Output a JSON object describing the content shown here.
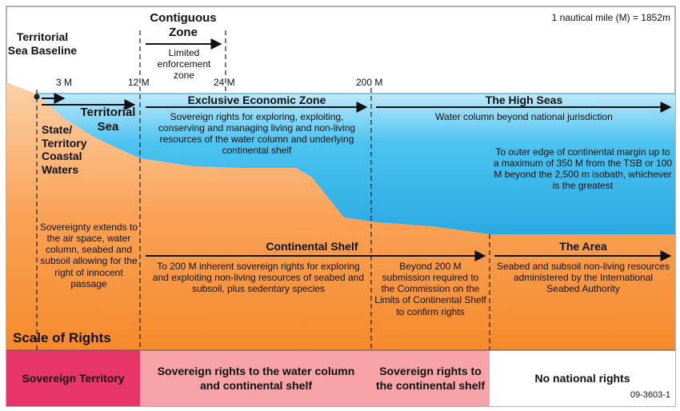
{
  "title_note": "1 nautical mile (M) = 1852m",
  "figure_id": "09-3603-1",
  "baseline_label": "Territorial Sea Baseline",
  "contiguous_zone": {
    "title": "Contiguous Zone",
    "subtitle": "Limited enforcement zone"
  },
  "distance_markers": [
    "3 M",
    "12 M",
    "24 M",
    "200 M"
  ],
  "zones": {
    "territorial_sea": "Territorial Sea",
    "state_waters": "State/ Territory Coastal Waters",
    "eez": {
      "title": "Exclusive Economic Zone",
      "description": "Sovereign rights for exploring, exploiting, conserving and managing living and non-living resources of the water column and underlying continental shelf"
    },
    "high_seas": {
      "title": "The High Seas",
      "description": "Water column beyond national jurisdiction"
    },
    "margin_note": "To outer edge of continental margin up to a maximum of 350 M from the TSB or 100 M beyond the 2,500 m isobath, whichever is the greatest",
    "sovereignty_note": "Sovereignty extends to the air space, water column, seabed and subsoil allowing for the right of innocent passage",
    "continental_shelf": {
      "title": "Continental Shelf",
      "description": "To 200 M inherent sovereign rights for exploring and exploiting non-living resources of seabed and subsoil, plus sedentary species",
      "beyond": "Beyond 200 M submission required to the Commission on the Limits of Continental Shelf to confirm rights"
    },
    "the_area": {
      "title": "The Area",
      "description": "Seabed and subsoil non-living resources administered by the International Seabed Authority"
    }
  },
  "scale_of_rights": "Scale of Rights",
  "rights_bar": [
    {
      "label": "Sovereign Territory",
      "color": "#e8356a"
    },
    {
      "label": "Sovereign rights to the water column and continental shelf",
      "color": "#f7a3a8"
    },
    {
      "label": "Sovereign rights to the continental shelf",
      "color": "#f7a3a8"
    },
    {
      "label": "No national rights",
      "color": "#ffffff"
    }
  ],
  "colors": {
    "sea": "#2fb4e8",
    "seabed": "#f58a2c",
    "sovereign": "#e8356a",
    "sovereign_rights": "#f7a3a8"
  }
}
